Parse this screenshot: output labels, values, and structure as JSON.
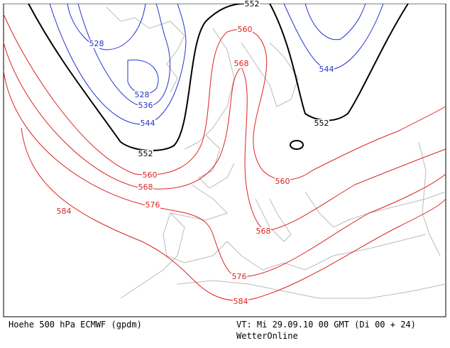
{
  "map": {
    "contour_labels": [
      552,
      528,
      528,
      536,
      544,
      552,
      560,
      568,
      544,
      552,
      560,
      568,
      576,
      584,
      560,
      568,
      576,
      584
    ]
  },
  "footer": {
    "left": "Hoehe 500 hPa ECMWF (gpdm)",
    "right": "VT: Mi 29.09.10 00 GMT (Di 00 + 24)",
    "credit": "WetterOnline"
  }
}
